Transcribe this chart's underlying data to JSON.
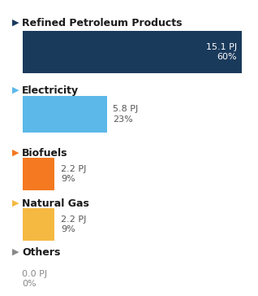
{
  "categories": [
    "Refined Petroleum Products",
    "Electricity",
    "Biofuels",
    "Natural Gas",
    "Others"
  ],
  "values": [
    15.1,
    5.8,
    2.2,
    2.2,
    0.0
  ],
  "percentages": [
    "60%",
    "23%",
    "9%",
    "9%",
    "0%"
  ],
  "labels_pj": [
    "15.1 PJ",
    "5.8 PJ",
    "2.2 PJ",
    "2.2 PJ",
    "0.0 PJ"
  ],
  "bar_colors": [
    "#1a3a5c",
    "#5bb8e8",
    "#f47920",
    "#f5b942",
    "#aaaaaa"
  ],
  "arrow_colors": [
    "#1a3a5c",
    "#5bb8e8",
    "#f47920",
    "#f5b942",
    "#888888"
  ],
  "max_value": 15.1,
  "background_color": "#ffffff",
  "label_inside": [
    true,
    false,
    false,
    false,
    false
  ],
  "label_color_inside": "#ffffff",
  "label_color_outside": "#555555",
  "label_color_others": "#888888",
  "cat_fontsize": 9,
  "val_fontsize": 8,
  "arrow_fontsize": 8
}
